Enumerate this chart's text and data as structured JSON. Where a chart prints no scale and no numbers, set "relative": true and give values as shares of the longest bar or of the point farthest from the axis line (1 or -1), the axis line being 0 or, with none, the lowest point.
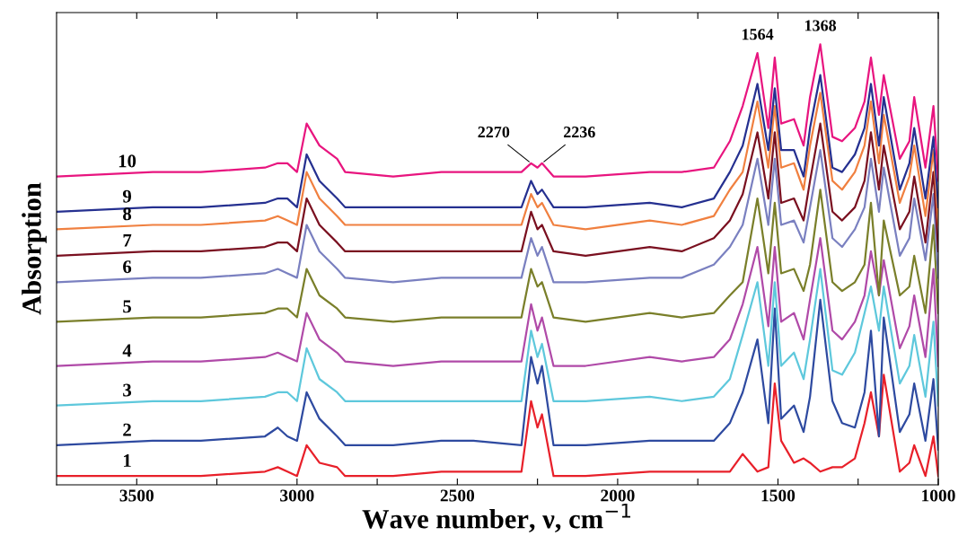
{
  "chart_data": {
    "type": "line",
    "relative": true,
    "xlabel": "Wave number, ν, cm$^{−1}$",
    "ylabel": "Absorption",
    "tick_labels": "x",
    "legend": false,
    "xlim": [
      3750,
      1000
    ],
    "xticks": [
      3500,
      {
        "value": 3250,
        "label": null
      },
      3000,
      {
        "value": 2750,
        "label": null
      },
      2500,
      {
        "value": 2250,
        "label": null
      },
      2000,
      {
        "value": 1750,
        "label": null
      },
      1500,
      {
        "value": 1250,
        "label": null
      },
      1000
    ],
    "x": [
      3750,
      3450,
      3300,
      3100,
      3060,
      3030,
      3000,
      2970,
      2930,
      2875,
      2850,
      2700,
      2550,
      2450,
      2300,
      2270,
      2250,
      2236,
      2200,
      2100,
      1900,
      1800,
      1700,
      1650,
      1610,
      1564,
      1530,
      1510,
      1490,
      1450,
      1420,
      1400,
      1368,
      1330,
      1300,
      1260,
      1230,
      1210,
      1185,
      1170,
      1120,
      1090,
      1075,
      1040,
      1015,
      1000
    ],
    "series": [
      {
        "name": "1",
        "color": "#e8202a",
        "values": [
          0.02,
          0.02,
          0.02,
          0.03,
          0.04,
          0.03,
          0.02,
          0.09,
          0.05,
          0.04,
          0.02,
          0.02,
          0.03,
          0.03,
          0.03,
          0.19,
          0.13,
          0.16,
          0.02,
          0.02,
          0.03,
          0.03,
          0.03,
          0.03,
          0.07,
          0.03,
          0.04,
          0.23,
          0.1,
          0.05,
          0.06,
          0.05,
          0.03,
          0.04,
          0.04,
          0.06,
          0.14,
          0.21,
          0.11,
          0.25,
          0.03,
          0.05,
          0.09,
          0.02,
          0.11,
          0.02
        ]
      },
      {
        "name": "2",
        "color": "#2e4aa0",
        "values": [
          0.09,
          0.1,
          0.1,
          0.11,
          0.13,
          0.11,
          0.1,
          0.21,
          0.15,
          0.11,
          0.09,
          0.09,
          0.1,
          0.1,
          0.09,
          0.29,
          0.23,
          0.27,
          0.09,
          0.09,
          0.1,
          0.1,
          0.1,
          0.14,
          0.21,
          0.33,
          0.14,
          0.4,
          0.15,
          0.18,
          0.12,
          0.2,
          0.42,
          0.19,
          0.14,
          0.13,
          0.21,
          0.35,
          0.11,
          0.38,
          0.12,
          0.16,
          0.23,
          0.1,
          0.24,
          0.08
        ]
      },
      {
        "name": "3",
        "color": "#5ec8dc",
        "values": [
          0.18,
          0.19,
          0.19,
          0.2,
          0.21,
          0.21,
          0.19,
          0.31,
          0.24,
          0.21,
          0.19,
          0.19,
          0.19,
          0.19,
          0.19,
          0.35,
          0.29,
          0.32,
          0.19,
          0.19,
          0.2,
          0.19,
          0.2,
          0.24,
          0.34,
          0.46,
          0.27,
          0.46,
          0.27,
          0.3,
          0.24,
          0.33,
          0.49,
          0.26,
          0.25,
          0.3,
          0.39,
          0.45,
          0.35,
          0.45,
          0.23,
          0.27,
          0.34,
          0.2,
          0.37,
          0.18
        ]
      },
      {
        "name": "4",
        "color": "#b04aa8",
        "values": [
          0.27,
          0.28,
          0.28,
          0.29,
          0.3,
          0.29,
          0.28,
          0.39,
          0.33,
          0.3,
          0.28,
          0.27,
          0.28,
          0.28,
          0.28,
          0.41,
          0.35,
          0.38,
          0.27,
          0.27,
          0.29,
          0.28,
          0.29,
          0.33,
          0.41,
          0.54,
          0.36,
          0.54,
          0.37,
          0.39,
          0.33,
          0.42,
          0.56,
          0.35,
          0.33,
          0.37,
          0.43,
          0.53,
          0.43,
          0.51,
          0.31,
          0.36,
          0.43,
          0.29,
          0.49,
          0.27
        ]
      },
      {
        "name": "5",
        "color": "#7a7f2a",
        "values": [
          0.37,
          0.38,
          0.38,
          0.39,
          0.4,
          0.4,
          0.38,
          0.49,
          0.43,
          0.4,
          0.38,
          0.37,
          0.38,
          0.38,
          0.38,
          0.49,
          0.45,
          0.46,
          0.38,
          0.37,
          0.39,
          0.38,
          0.39,
          0.43,
          0.46,
          0.65,
          0.48,
          0.64,
          0.48,
          0.49,
          0.44,
          0.5,
          0.67,
          0.46,
          0.44,
          0.46,
          0.5,
          0.64,
          0.43,
          0.6,
          0.43,
          0.45,
          0.52,
          0.39,
          0.59,
          0.39
        ]
      },
      {
        "name": "6",
        "color": "#7a80c0",
        "values": [
          0.46,
          0.47,
          0.47,
          0.48,
          0.49,
          0.48,
          0.47,
          0.59,
          0.53,
          0.49,
          0.47,
          0.46,
          0.47,
          0.47,
          0.47,
          0.56,
          0.52,
          0.54,
          0.46,
          0.46,
          0.47,
          0.47,
          0.5,
          0.54,
          0.59,
          0.74,
          0.59,
          0.74,
          0.59,
          0.6,
          0.55,
          0.63,
          0.76,
          0.56,
          0.54,
          0.58,
          0.63,
          0.74,
          0.62,
          0.72,
          0.52,
          0.56,
          0.65,
          0.51,
          0.66,
          0.47
        ]
      },
      {
        "name": "7",
        "color": "#7a1020",
        "values": [
          0.52,
          0.53,
          0.53,
          0.54,
          0.55,
          0.55,
          0.53,
          0.65,
          0.59,
          0.55,
          0.53,
          0.53,
          0.53,
          0.53,
          0.53,
          0.62,
          0.58,
          0.59,
          0.53,
          0.52,
          0.54,
          0.53,
          0.56,
          0.6,
          0.66,
          0.8,
          0.65,
          0.8,
          0.64,
          0.65,
          0.6,
          0.69,
          0.82,
          0.62,
          0.6,
          0.63,
          0.69,
          0.8,
          0.67,
          0.77,
          0.58,
          0.62,
          0.7,
          0.55,
          0.71,
          0.53
        ]
      },
      {
        "name": "8",
        "color": "#f08040",
        "values": [
          0.58,
          0.59,
          0.59,
          0.6,
          0.61,
          0.6,
          0.59,
          0.71,
          0.65,
          0.61,
          0.59,
          0.59,
          0.59,
          0.59,
          0.59,
          0.66,
          0.63,
          0.64,
          0.59,
          0.58,
          0.6,
          0.59,
          0.61,
          0.67,
          0.71,
          0.87,
          0.72,
          0.86,
          0.72,
          0.73,
          0.67,
          0.77,
          0.89,
          0.69,
          0.67,
          0.71,
          0.77,
          0.87,
          0.73,
          0.84,
          0.64,
          0.7,
          0.77,
          0.61,
          0.76,
          0.59
        ]
      },
      {
        "name": "9",
        "color": "#253090",
        "values": [
          0.62,
          0.63,
          0.63,
          0.64,
          0.65,
          0.65,
          0.63,
          0.75,
          0.69,
          0.65,
          0.63,
          0.63,
          0.63,
          0.63,
          0.63,
          0.69,
          0.66,
          0.67,
          0.63,
          0.63,
          0.64,
          0.63,
          0.65,
          0.71,
          0.77,
          0.91,
          0.76,
          0.9,
          0.76,
          0.76,
          0.7,
          0.81,
          0.93,
          0.72,
          0.71,
          0.75,
          0.81,
          0.91,
          0.77,
          0.88,
          0.67,
          0.73,
          0.81,
          0.65,
          0.79,
          0.63
        ]
      },
      {
        "name": "10",
        "color": "#e8157f",
        "values": [
          0.7,
          0.71,
          0.71,
          0.72,
          0.73,
          0.73,
          0.71,
          0.82,
          0.77,
          0.74,
          0.71,
          0.7,
          0.71,
          0.71,
          0.71,
          0.73,
          0.72,
          0.73,
          0.7,
          0.7,
          0.71,
          0.71,
          0.72,
          0.78,
          0.86,
          0.98,
          0.81,
          0.97,
          0.82,
          0.83,
          0.77,
          0.88,
          1.0,
          0.79,
          0.78,
          0.81,
          0.87,
          0.97,
          0.84,
          0.93,
          0.74,
          0.78,
          0.88,
          0.72,
          0.86,
          0.69
        ]
      }
    ],
    "annotations": [
      {
        "text": "2270",
        "x": 2270,
        "y": 0.73
      },
      {
        "text": "2236",
        "x": 2236,
        "y": 0.73
      },
      {
        "text": "1564",
        "x": 1564,
        "y": 0.98
      },
      {
        "text": "1368",
        "x": 1368,
        "y": 1.0
      }
    ]
  }
}
